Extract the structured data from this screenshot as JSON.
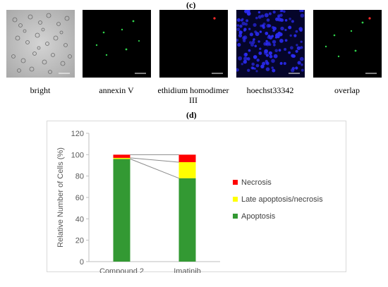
{
  "panel_c_label": "(c)",
  "panel_d_label": "(d)",
  "micrographs": [
    {
      "caption": "bright",
      "channel": "brightfield",
      "color": "#b8b8b8"
    },
    {
      "caption": "annexin V",
      "channel": "green",
      "color": "#22cc44"
    },
    {
      "caption": "ethidium homodimer III",
      "channel": "red",
      "color": "#ff2222"
    },
    {
      "caption": "hoechst33342",
      "channel": "blue",
      "color": "#2a2aff"
    },
    {
      "caption": "overlap",
      "channel": "merge",
      "color": "#22cc44"
    }
  ],
  "chart_data": {
    "type": "bar",
    "stacked": true,
    "categories": [
      "Compound 2",
      "Imatinib"
    ],
    "series": [
      {
        "name": "Apoptosis",
        "color": "#339933",
        "values": [
          96,
          78
        ]
      },
      {
        "name": "Late apoptosis/necrosis",
        "color": "#ffff00",
        "values": [
          1,
          15
        ]
      },
      {
        "name": "Necrosis",
        "color": "#ff0000",
        "values": [
          3,
          7
        ]
      }
    ],
    "ylabel": "Relative Number of Cells (%)",
    "xlabel": "",
    "ylim": [
      0,
      120
    ],
    "yticks": [
      0,
      20,
      40,
      60,
      80,
      100,
      120
    ],
    "series_connectors": true,
    "grid": false,
    "legend_position": "right"
  }
}
